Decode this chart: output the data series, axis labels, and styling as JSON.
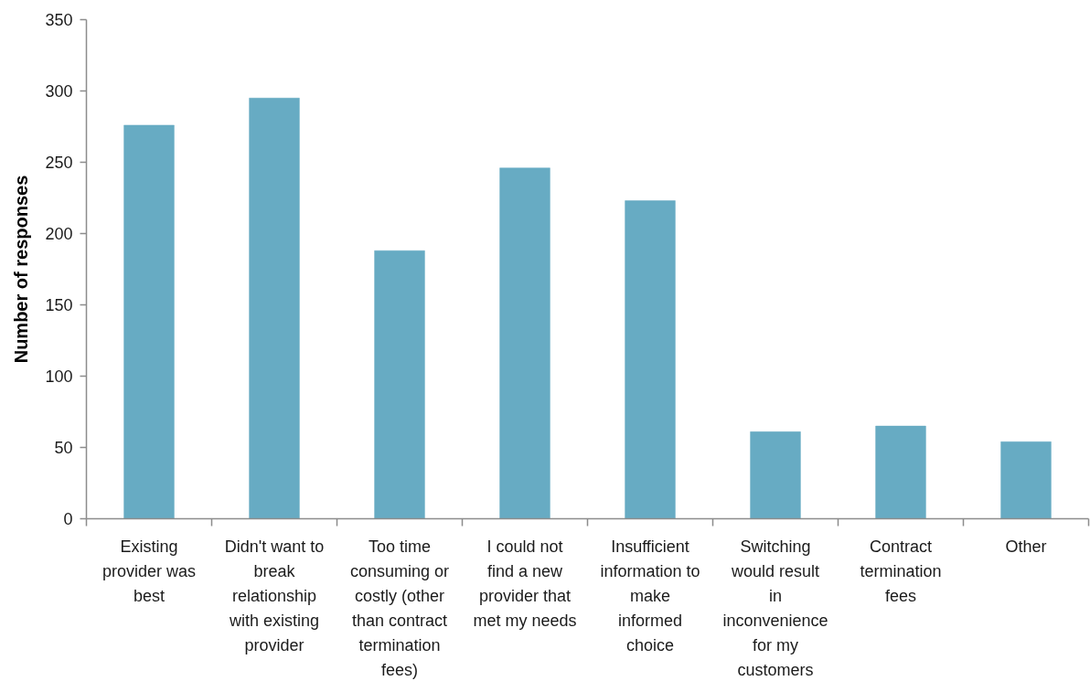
{
  "chart_data": {
    "type": "bar",
    "ylabel": "Number of responses",
    "categories": [
      "Existing provider was best",
      "Didn't want to break relationship with existing provider",
      "Too time consuming or costly (other than contract termination fees)",
      "I could not find a new provider that met my needs",
      "Insufficient information to make informed choice",
      "Switching would result in inconvenience for my customers",
      "Contract termination fees",
      "Other"
    ],
    "values": [
      276,
      295,
      188,
      246,
      223,
      61,
      65,
      54
    ],
    "color": "#67abc3",
    "ylim": [
      0,
      350
    ],
    "yticks": [
      0,
      50,
      100,
      150,
      200,
      250,
      300,
      350
    ]
  }
}
